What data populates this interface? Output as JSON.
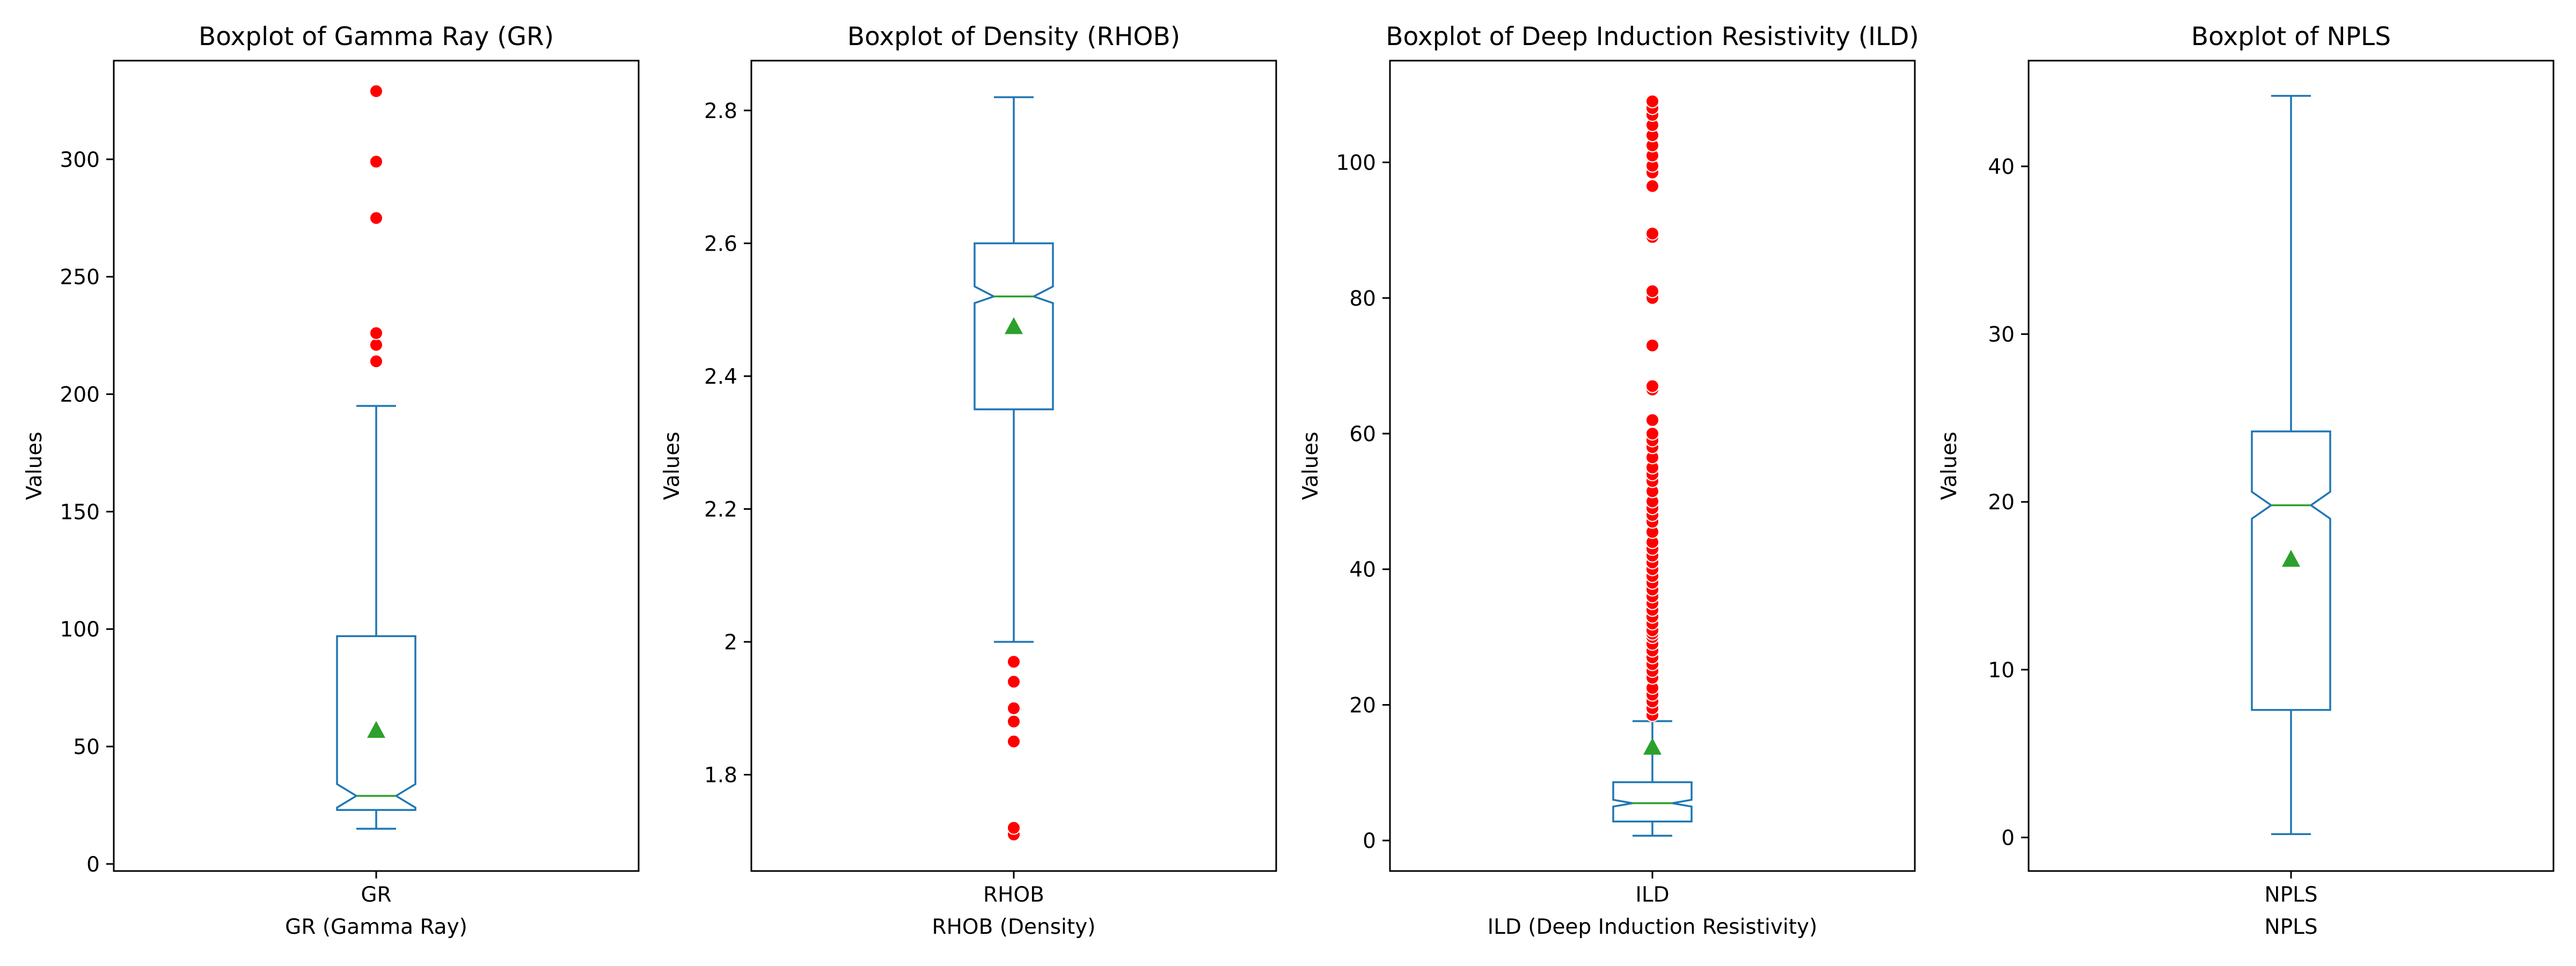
{
  "chart_data": [
    {
      "type": "boxplot",
      "title": "Boxplot of Gamma Ray (GR)",
      "category": "GR",
      "xlabel": "GR (Gamma Ray)",
      "ylabel": "Values",
      "ylim": [
        -3,
        342
      ],
      "yticks": [
        0,
        50,
        100,
        150,
        200,
        250,
        300
      ],
      "box": {
        "whisker_low": 15,
        "q1": 23,
        "median": 29,
        "q3": 97,
        "whisker_high": 195,
        "notch_low": 24,
        "notch_high": 34,
        "mean": 57
      },
      "outliers": [
        214,
        221,
        226,
        275,
        299,
        329
      ]
    },
    {
      "type": "boxplot",
      "title": "Boxplot of Density (RHOB)",
      "category": "RHOB",
      "xlabel": "RHOB (Density)",
      "ylabel": "Values",
      "ylim": [
        1.655,
        2.875
      ],
      "yticks": [
        1.8,
        2.0,
        2.2,
        2.4,
        2.6,
        2.8
      ],
      "box": {
        "whisker_low": 2.0,
        "q1": 2.35,
        "median": 2.52,
        "q3": 2.6,
        "whisker_high": 2.82,
        "notch_low": 2.51,
        "notch_high": 2.535,
        "mean": 2.475
      },
      "outliers": [
        1.71,
        1.72,
        1.85,
        1.88,
        1.9,
        1.94,
        1.97
      ]
    },
    {
      "type": "boxplot",
      "title": "Boxplot of Deep Induction Resistivity (ILD)",
      "category": "ILD",
      "xlabel": "ILD (Deep Induction Resistivity)",
      "ylabel": "Values",
      "ylim": [
        -4.5,
        115
      ],
      "yticks": [
        0,
        20,
        40,
        60,
        80,
        100
      ],
      "box": {
        "whisker_low": 0.7,
        "q1": 2.8,
        "median": 5.5,
        "q3": 8.6,
        "whisker_high": 17.6,
        "notch_low": 5.0,
        "notch_high": 6.0,
        "mean": 13.8
      },
      "outliers": [
        18.5,
        19.5,
        20.5,
        21.5,
        22.5,
        24,
        25,
        26,
        27,
        28,
        29,
        30,
        30.5,
        31,
        32,
        33,
        34,
        35,
        36,
        37,
        38,
        39,
        40,
        41,
        42,
        43,
        44,
        45.5,
        47,
        48,
        49,
        50,
        51.5,
        53,
        54,
        55,
        56.5,
        58,
        59,
        60,
        62,
        66.5,
        67,
        73,
        80,
        81,
        89,
        89.5,
        96.5,
        98.5,
        99.5,
        101,
        102.5,
        104,
        105.5,
        107,
        108,
        109
      ]
    },
    {
      "type": "boxplot",
      "title": "Boxplot of NPLS",
      "category": "NPLS",
      "xlabel": "NPLS",
      "ylabel": "Values",
      "ylim": [
        -2,
        46.3
      ],
      "yticks": [
        0,
        10,
        20,
        30,
        40
      ],
      "box": {
        "whisker_low": 0.2,
        "q1": 7.6,
        "median": 19.8,
        "q3": 24.2,
        "whisker_high": 44.2,
        "notch_low": 19,
        "notch_high": 20.6,
        "mean": 16.6
      },
      "outliers": []
    }
  ],
  "colors": {
    "box": "#1f77b4",
    "median": "#2ca02c",
    "mean_marker": "#2ca02c",
    "outlier": "#ff0000"
  }
}
